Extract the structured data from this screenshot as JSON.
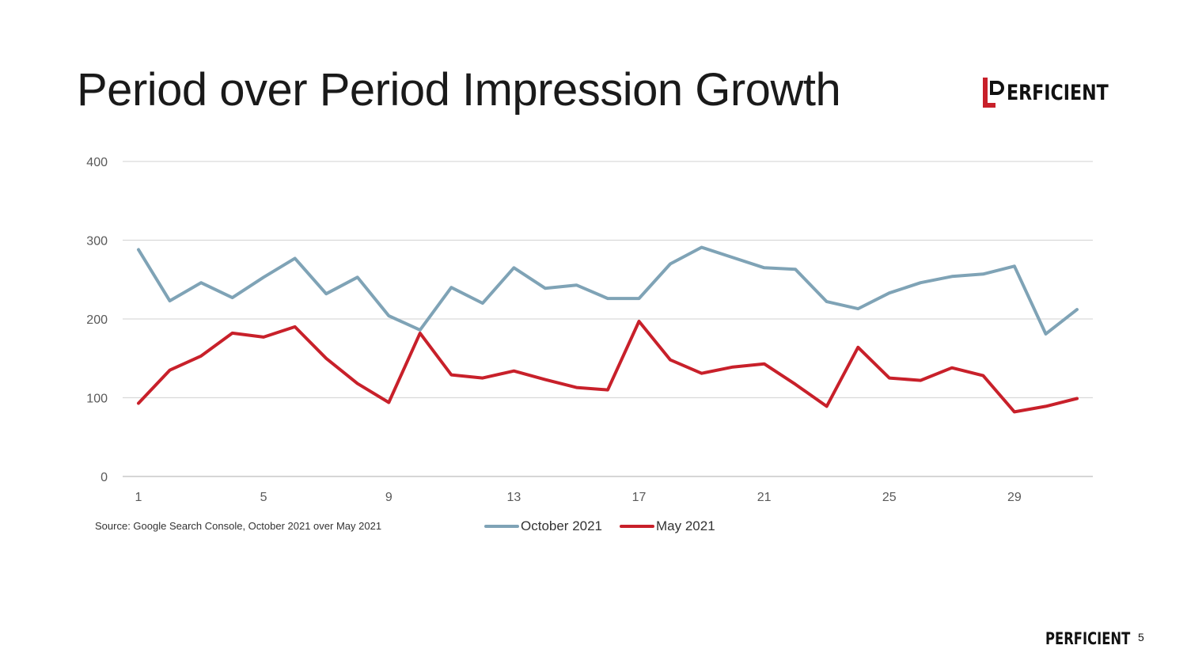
{
  "slide": {
    "title": "Period over Period Impression Growth",
    "source": "Source: Google Search Console, October 2021 over May 2021",
    "logo_text": "ERFICIENT",
    "footer_logo_text": "PERFICIENT",
    "page_number": "5"
  },
  "colors": {
    "october": "#7fa3b6",
    "may": "#c8202a",
    "grid": "#d9d9d9",
    "axis_text": "#595959",
    "logo_red": "#c8202a"
  },
  "chart_data": {
    "type": "line",
    "title": "Period over Period Impression Growth",
    "xlabel": "",
    "ylabel": "",
    "x": [
      1,
      2,
      3,
      4,
      5,
      6,
      7,
      8,
      9,
      10,
      11,
      12,
      13,
      14,
      15,
      16,
      17,
      18,
      19,
      20,
      21,
      22,
      23,
      24,
      25,
      26,
      27,
      28,
      29,
      30,
      31
    ],
    "x_ticks": [
      1,
      5,
      9,
      13,
      17,
      21,
      25,
      29
    ],
    "y_ticks": [
      0,
      100,
      200,
      300,
      400
    ],
    "ylim": [
      0,
      400
    ],
    "grid": true,
    "legend_position": "bottom",
    "series": [
      {
        "name": "October 2021",
        "values": [
          288,
          223,
          246,
          227,
          253,
          277,
          232,
          253,
          204,
          186,
          240,
          220,
          265,
          239,
          243,
          226,
          226,
          270,
          291,
          278,
          265,
          263,
          222,
          213,
          233,
          246,
          254,
          257,
          267,
          181,
          212
        ]
      },
      {
        "name": "May 2021",
        "values": [
          93,
          135,
          153,
          182,
          177,
          190,
          150,
          118,
          94,
          182,
          129,
          125,
          134,
          123,
          113,
          110,
          197,
          148,
          131,
          139,
          143,
          117,
          89,
          164,
          125,
          122,
          138,
          128,
          82,
          89,
          99
        ]
      }
    ]
  }
}
